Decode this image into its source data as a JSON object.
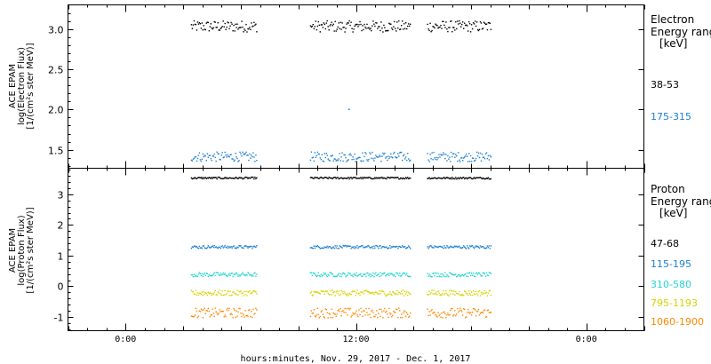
{
  "xlabel": "hours:minutes, Nov. 29, 2017 - Dec. 1, 2017",
  "x_ticks": [
    {
      "hours": 3,
      "label": "0:00"
    },
    {
      "hours": 15,
      "label": "12:00"
    },
    {
      "hours": 27,
      "label": "0:00"
    }
  ],
  "chart_data": [
    {
      "type": "scatter",
      "panel": "electron",
      "ylabel_lines": [
        "ACE EPAM",
        "log(Electron Flux)",
        "[1/(cm²s ster MeV)]"
      ],
      "xlim_hours": [
        0,
        30
      ],
      "ylim": [
        1.27,
        3.3
      ],
      "y_ticks": [
        1.5,
        2.0,
        2.5,
        3.0
      ],
      "y_tick_labels": [
        "1.5",
        "2.0",
        "2.5",
        "3.0"
      ],
      "legend": {
        "title_lines": [
          "Electron",
          "Energy ranges",
          "[keV]"
        ],
        "entries": [
          {
            "label": "38-53",
            "color": "#000000"
          },
          {
            "label": "175-315",
            "color": "#1e7fd0"
          }
        ]
      },
      "data_segments_hours": [
        [
          6.4,
          9.8
        ],
        [
          12.6,
          17.8
        ],
        [
          18.7,
          22.0
        ]
      ],
      "series": [
        {
          "color": "#000000",
          "level": 3.04,
          "spread": 0.07
        },
        {
          "color": "#1e7fd0",
          "level": 1.42,
          "spread": 0.06
        }
      ],
      "annotations": [
        {
          "x_hours": 14.6,
          "y": 2.01,
          "color": "#1e7fd0"
        }
      ]
    },
    {
      "type": "scatter",
      "panel": "proton",
      "ylabel_lines": [
        "ACE EPAM",
        "log(Proton Flux)",
        "[1/(cm²s ster MeV)]"
      ],
      "xlim_hours": [
        0,
        30
      ],
      "ylim": [
        -1.45,
        3.85
      ],
      "y_ticks": [
        -1,
        0,
        1,
        2,
        3
      ],
      "y_tick_labels": [
        "-1",
        "0",
        "1",
        "2",
        "3"
      ],
      "legend": {
        "title_lines": [
          "Proton",
          "Energy ranges",
          "[keV]"
        ],
        "entries": [
          {
            "label": "47-68",
            "color": "#000000"
          },
          {
            "label": "115-195",
            "color": "#1e7fd0"
          },
          {
            "label": "310-580",
            "color": "#22d4d4"
          },
          {
            "label": "795-1193",
            "color": "#d4d400"
          },
          {
            "label": "1060-1900",
            "color": "#ff8800"
          }
        ]
      },
      "data_segments_hours": [
        [
          6.4,
          9.8
        ],
        [
          12.6,
          17.8
        ],
        [
          18.7,
          22.0
        ]
      ],
      "series": [
        {
          "color": "#000000",
          "level": 3.55,
          "spread": 0.03
        },
        {
          "color": "#1e7fd0",
          "level": 1.3,
          "spread": 0.05
        },
        {
          "color": "#22d4d4",
          "level": 0.4,
          "spread": 0.07
        },
        {
          "color": "#d4d400",
          "level": -0.2,
          "spread": 0.09
        },
        {
          "color": "#ff8800",
          "level": -0.85,
          "spread": 0.16
        }
      ]
    }
  ]
}
